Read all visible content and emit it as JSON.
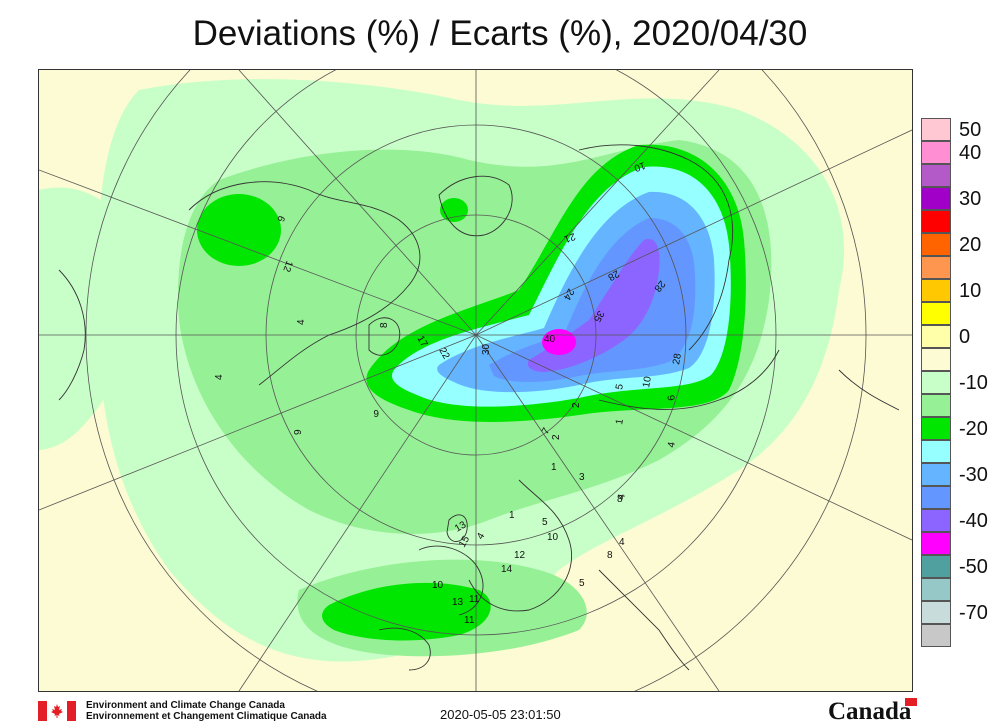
{
  "title": "Deviations (%) / Ecarts (%), 2020/04/30",
  "legend": [
    {
      "label": "50",
      "color": "#ffc8d2"
    },
    {
      "label": "40",
      "color": "#ff8ed2"
    },
    {
      "label": "",
      "color": "#b45ac8"
    },
    {
      "label": "30",
      "color": "#a000c8"
    },
    {
      "label": "",
      "color": "#ff0000"
    },
    {
      "label": "20",
      "color": "#ff6400"
    },
    {
      "label": "",
      "color": "#ff9650"
    },
    {
      "label": "10",
      "color": "#ffc800"
    },
    {
      "label": "",
      "color": "#ffff00"
    },
    {
      "label": "0",
      "color": "#ffffaa"
    },
    {
      "label": "",
      "color": "#fdfbd3"
    },
    {
      "label": "-10",
      "color": "#c8ffc8"
    },
    {
      "label": "",
      "color": "#96f096"
    },
    {
      "label": "-20",
      "color": "#00e600"
    },
    {
      "label": "",
      "color": "#96ffff"
    },
    {
      "label": "-30",
      "color": "#64b4ff"
    },
    {
      "label": "",
      "color": "#6496ff"
    },
    {
      "label": "-40",
      "color": "#8c64ff"
    },
    {
      "label": "",
      "color": "#ff00ff"
    },
    {
      "label": "-50",
      "color": "#50a0a0"
    },
    {
      "label": "",
      "color": "#96c8c8"
    },
    {
      "label": "-70",
      "color": "#c8dcdc"
    },
    {
      "label": "",
      "color": "#c8c8c8"
    }
  ],
  "legend_ticks": [
    "50",
    "40",
    "30",
    "20",
    "10",
    "0",
    "-10",
    "-20",
    "-30",
    "-40",
    "-50",
    "-70"
  ],
  "map_labels": [
    "10",
    "21",
    "28",
    "24",
    "35",
    "28",
    "40",
    "28",
    "30",
    "22",
    "17",
    "8",
    "6",
    "6",
    "12",
    "4",
    "4",
    "9",
    "2",
    "5",
    "10",
    "1",
    "6",
    "2",
    "4",
    "3",
    "1",
    "1",
    "4",
    "7",
    "13",
    "15",
    "8",
    "4",
    "4",
    "5",
    "12",
    "14",
    "10",
    "8",
    "5",
    "10",
    "13",
    "11",
    "11",
    "4"
  ],
  "footer": {
    "agency_en": "Environment and Climate Change Canada",
    "agency_fr": "Environnement et Changement Climatique Canada",
    "timestamp": "2020-05-05 23:01:50",
    "wordmark": "Canada"
  }
}
